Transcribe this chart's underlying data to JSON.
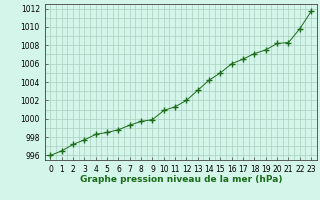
{
  "x": [
    0,
    1,
    2,
    3,
    4,
    5,
    6,
    7,
    8,
    9,
    10,
    11,
    12,
    13,
    14,
    15,
    16,
    17,
    18,
    19,
    20,
    21,
    22,
    23
  ],
  "y": [
    996.0,
    996.5,
    997.2,
    997.7,
    998.3,
    998.5,
    998.8,
    999.3,
    999.7,
    999.9,
    1000.9,
    1001.3,
    1002.0,
    1003.1,
    1004.2,
    1005.0,
    1006.0,
    1006.5,
    1007.1,
    1007.5,
    1008.2,
    1008.3,
    1009.8,
    1011.7
  ],
  "line_color": "#1a6b1a",
  "marker": "+",
  "marker_size": 4,
  "bg_color": "#d4f5e9",
  "grid_color": "#aacfbe",
  "xlabel": "Graphe pression niveau de la mer (hPa)",
  "ylabel_ticks": [
    996,
    998,
    1000,
    1002,
    1004,
    1006,
    1008,
    1010,
    1012
  ],
  "xlim": [
    -0.5,
    23.5
  ],
  "ylim": [
    995.5,
    1012.5
  ],
  "xlabel_fontsize": 6.5,
  "tick_fontsize": 5.5
}
